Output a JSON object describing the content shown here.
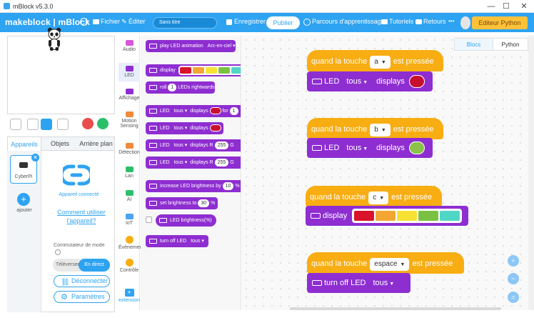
{
  "window": {
    "title": "mBlock v5.3.0",
    "minimize": "—",
    "maximize": "☐",
    "close": "✕"
  },
  "menubar": {
    "brand": "makeblock | mBlock",
    "globe_icon": "globe-icon",
    "file": "Fichier",
    "edit": "Éditer",
    "project_title": "Sans titre",
    "save": "Enregistrer",
    "publish": "Publier",
    "learning": "Parcours d'apprentissage",
    "tutorials": "Tutoriels",
    "feedback": "Retours",
    "more": "•••",
    "python_editor": "Editeur Python",
    "accent": "#2ea3f2"
  },
  "device_panel": {
    "tabs": [
      "Appareils",
      "Objets",
      "Arrière plan"
    ],
    "device_name": "CyberPi",
    "add_label": "ajouter",
    "connected": "Appareil connecté",
    "how_to": "Comment utiliser l'appareil?",
    "mode_label": "Commutateur de mode",
    "mode_upload": "Téléverser",
    "mode_live": "En direct",
    "disconnect": "Déconnecter",
    "settings": "Paramètres"
  },
  "categories": [
    {
      "label": "Audio",
      "color": "#d658d6"
    },
    {
      "label": "LED",
      "color": "#8e2ed1"
    },
    {
      "label": "Affichage",
      "color": "#8e2ed1"
    },
    {
      "label": "Motion Sensing",
      "color": "#f08a3a"
    },
    {
      "label": "Détection",
      "color": "#f08a3a"
    },
    {
      "label": "Lan",
      "color": "#2cbf6b"
    },
    {
      "label": "AI",
      "color": "#2cbf6b"
    },
    {
      "label": "IoT",
      "color": "#4aa4f0"
    },
    {
      "label": "Événements",
      "color": "#f8ad13"
    },
    {
      "label": "Contrôle",
      "color": "#f8ad13"
    },
    {
      "label": "extension",
      "color": "#2ea3f2"
    }
  ],
  "palette": {
    "b1": "play LED animation",
    "b1_val": "Arc-en-ciel ▾",
    "b2": "display",
    "b3a": "roll",
    "b3_num": "1",
    "b3b": "LEDs rightwards",
    "b4a": "LED",
    "b4_sel": "tous ▾",
    "b4b": "displays",
    "b4c": "for",
    "b4_num": "1",
    "b5a": "LED",
    "b5_sel": "tous ▾",
    "b5b": "displays",
    "b6a": "LED",
    "b6_sel": "tous ▾",
    "b6b": "displays R",
    "b6_r": "255",
    "b6_g": "G",
    "b7a": "LED",
    "b7_sel": "tous ▾",
    "b7b": "displays R",
    "b7_r": "255",
    "b7_g": "G",
    "b8": "increase LED brightness by",
    "b8_num": "10",
    "b8_unit": "%",
    "b9": "set brightness to",
    "b9_num": "30",
    "b9_unit": "%",
    "b10": "LED brightness(%)",
    "b11": "turn off LED",
    "b11_sel": "tous ▾"
  },
  "workspace": {
    "tab_blocks": "Blocs",
    "tab_python": "Python",
    "when_key": "quand la touche",
    "pressed": "est pressée",
    "led": "LED",
    "all": "tous",
    "displays": "displays",
    "display": "display",
    "turn_off": "turn off LED",
    "script1_key": "a",
    "script2_key": "b",
    "script3_key": "c",
    "script4_key": "espace",
    "color_red": "#c8102e",
    "color_green": "#8bc34a",
    "strip_colors": [
      "#d8132a",
      "#f3a633",
      "#f7e233",
      "#7ac143",
      "#4fd6c7"
    ]
  }
}
